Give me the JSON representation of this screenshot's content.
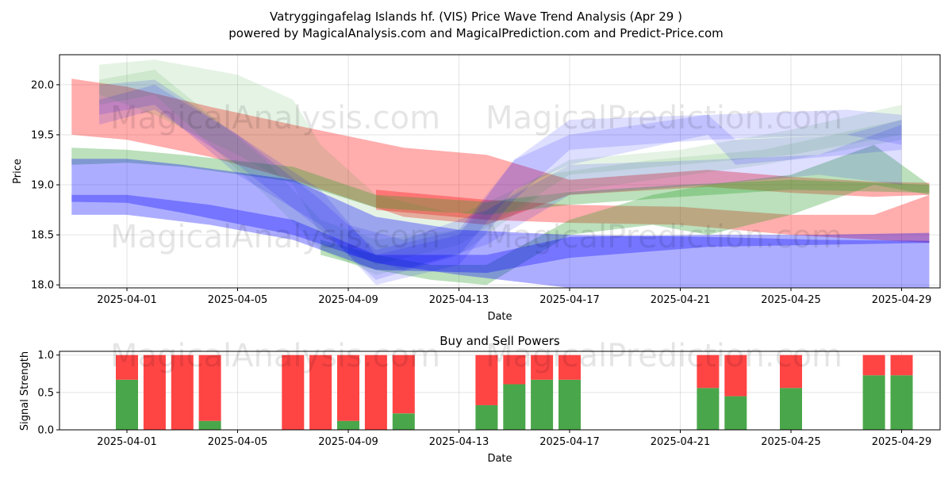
{
  "title_line1": "Vatryggingafelag Islands hf. (VIS) Price Wave Trend Analysis (Apr 29 )",
  "title_line2": "powered by MagicalAnalysis.com and MagicalPrediction.com and Predict-Price.com",
  "watermarks": [
    "MagicalAnalysis.com",
    "MagicalPrediction.com"
  ],
  "colors": {
    "green": "#2ca02c",
    "red": "#ff0000",
    "blue": "#0000ff",
    "buy": "#4aa64a",
    "sell": "#ff4444"
  },
  "chart_data": [
    {
      "type": "area",
      "xlabel": "Date",
      "ylabel": "Price",
      "ylim": [
        17.97,
        20.3
      ],
      "x_ticks": [
        "2025-04-01",
        "2025-04-05",
        "2025-04-09",
        "2025-04-13",
        "2025-04-17",
        "2025-04-21",
        "2025-04-25",
        "2025-04-29"
      ],
      "y_ticks": [
        "18.0",
        "18.5",
        "19.0",
        "19.5",
        "20.0"
      ],
      "grid": true,
      "bands": [
        {
          "color": "red",
          "opacity": 0.32,
          "x": [
            "2025-03-30",
            "2025-04-01",
            "2025-04-04",
            "2025-04-07",
            "2025-04-11",
            "2025-04-14",
            "2025-04-17",
            "2025-04-22",
            "2025-04-25",
            "2025-04-28",
            "2025-04-30"
          ],
          "low": [
            19.5,
            19.45,
            19.28,
            19.05,
            18.68,
            18.6,
            18.9,
            18.98,
            18.92,
            18.88,
            18.9
          ],
          "high": [
            20.06,
            19.98,
            19.78,
            19.6,
            19.37,
            19.3,
            19.05,
            19.15,
            19.08,
            19.03,
            19.02
          ]
        },
        {
          "color": "red",
          "opacity": 0.32,
          "x": [
            "2025-04-10",
            "2025-04-14",
            "2025-04-17",
            "2025-04-21",
            "2025-04-25",
            "2025-04-28",
            "2025-04-30"
          ],
          "low": [
            18.75,
            18.65,
            18.62,
            18.6,
            18.5,
            18.45,
            18.42
          ],
          "high": [
            18.95,
            18.85,
            18.8,
            18.78,
            18.7,
            18.7,
            18.9
          ]
        },
        {
          "color": "green",
          "opacity": 0.32,
          "x": [
            "2025-03-30",
            "2025-04-01",
            "2025-04-03",
            "2025-04-07",
            "2025-04-10",
            "2025-04-14",
            "2025-04-17",
            "2025-04-21",
            "2025-04-25",
            "2025-04-30"
          ],
          "low": [
            19.2,
            19.22,
            19.18,
            19.03,
            18.77,
            18.7,
            18.8,
            18.88,
            18.95,
            18.92
          ],
          "high": [
            19.37,
            19.35,
            19.3,
            19.18,
            18.9,
            18.83,
            18.93,
            19.0,
            19.05,
            19.0
          ]
        },
        {
          "color": "green",
          "opacity": 0.32,
          "x": [
            "2025-04-08",
            "2025-04-10",
            "2025-04-12",
            "2025-04-14",
            "2025-04-17",
            "2025-04-20",
            "2025-04-22",
            "2025-04-25",
            "2025-04-28",
            "2025-04-30"
          ],
          "low": [
            18.3,
            18.15,
            18.05,
            18.0,
            18.5,
            18.6,
            18.5,
            18.7,
            19.0,
            18.9
          ],
          "high": [
            18.45,
            18.3,
            18.2,
            18.2,
            18.65,
            18.9,
            19.0,
            19.1,
            19.4,
            19.0
          ]
        },
        {
          "color": "green",
          "opacity": 0.12,
          "x": [
            "2025-03-31",
            "2025-04-02",
            "2025-04-05",
            "2025-04-07",
            "2025-04-08",
            "2025-04-10",
            "2025-04-13",
            "2025-04-15",
            "2025-04-17",
            "2025-04-21",
            "2025-04-25",
            "2025-04-29"
          ],
          "low": [
            19.9,
            19.7,
            19.3,
            19.0,
            18.5,
            18.2,
            18.4,
            18.75,
            19.1,
            19.2,
            19.3,
            19.5
          ],
          "high": [
            20.2,
            20.25,
            20.1,
            19.85,
            19.4,
            18.9,
            18.7,
            18.95,
            19.25,
            19.35,
            19.55,
            19.8
          ]
        },
        {
          "color": "green",
          "opacity": 0.12,
          "x": [
            "2025-03-31",
            "2025-04-02",
            "2025-04-04",
            "2025-04-06",
            "2025-04-08",
            "2025-04-10",
            "2025-04-13",
            "2025-04-16",
            "2025-04-20",
            "2025-04-24",
            "2025-04-29"
          ],
          "low": [
            19.8,
            19.9,
            19.4,
            18.9,
            18.35,
            18.1,
            18.3,
            18.9,
            19.05,
            19.2,
            19.45
          ],
          "high": [
            20.05,
            20.15,
            19.7,
            19.25,
            18.65,
            18.45,
            18.55,
            19.1,
            19.25,
            19.35,
            19.65
          ]
        },
        {
          "color": "blue",
          "opacity": 0.32,
          "x": [
            "2025-03-30",
            "2025-04-01",
            "2025-04-03",
            "2025-04-07",
            "2025-04-10",
            "2025-04-13",
            "2025-04-17",
            "2025-04-22",
            "2025-04-26",
            "2025-04-30"
          ],
          "low": [
            18.83,
            18.82,
            18.72,
            18.5,
            18.22,
            18.1,
            17.97,
            17.97,
            17.97,
            17.97
          ],
          "high": [
            19.26,
            19.26,
            19.2,
            19.05,
            18.68,
            18.55,
            18.5,
            18.48,
            18.45,
            18.44
          ]
        },
        {
          "color": "blue",
          "opacity": 0.32,
          "x": [
            "2025-03-30",
            "2025-04-01",
            "2025-04-04",
            "2025-04-07",
            "2025-04-10",
            "2025-04-14",
            "2025-04-17",
            "2025-04-22",
            "2025-04-26",
            "2025-04-30"
          ],
          "low": [
            18.7,
            18.7,
            18.6,
            18.45,
            18.15,
            18.12,
            18.27,
            18.38,
            18.4,
            18.42
          ],
          "high": [
            18.9,
            18.9,
            18.8,
            18.65,
            18.3,
            18.3,
            18.48,
            18.5,
            18.5,
            18.52
          ]
        },
        {
          "color": "blue",
          "opacity": 0.13,
          "x": [
            "2025-03-31",
            "2025-04-02",
            "2025-04-05",
            "2025-04-08",
            "2025-04-10",
            "2025-04-13",
            "2025-04-15",
            "2025-04-17",
            "2025-04-22",
            "2025-04-27",
            "2025-04-29"
          ],
          "low": [
            19.7,
            19.8,
            19.1,
            18.6,
            18.0,
            18.2,
            18.85,
            19.35,
            19.45,
            19.5,
            19.4
          ],
          "high": [
            20.0,
            20.05,
            19.5,
            18.95,
            18.3,
            18.5,
            19.25,
            19.65,
            19.7,
            19.75,
            19.7
          ]
        },
        {
          "color": "blue",
          "opacity": 0.13,
          "x": [
            "2025-03-31",
            "2025-04-02",
            "2025-04-05",
            "2025-04-08",
            "2025-04-10",
            "2025-04-13",
            "2025-04-15",
            "2025-04-17",
            "2025-04-22",
            "2025-04-23",
            "2025-04-27",
            "2025-04-29"
          ],
          "low": [
            19.6,
            19.75,
            19.2,
            18.55,
            18.05,
            18.3,
            18.95,
            19.2,
            19.5,
            19.2,
            19.3,
            19.35
          ],
          "high": [
            19.85,
            20.0,
            19.5,
            18.85,
            18.35,
            18.55,
            19.25,
            19.5,
            19.7,
            19.45,
            19.5,
            19.65
          ]
        },
        {
          "color": "blue",
          "opacity": 0.13,
          "x": [
            "2025-04-09",
            "2025-04-11",
            "2025-04-14",
            "2025-04-17",
            "2025-04-22",
            "2025-04-26",
            "2025-04-29"
          ],
          "low": [
            18.3,
            18.15,
            18.4,
            18.9,
            19.0,
            19.1,
            19.0
          ],
          "high": [
            18.6,
            18.45,
            18.75,
            19.2,
            19.25,
            19.3,
            19.6
          ]
        }
      ]
    },
    {
      "type": "bar",
      "title": "Buy and Sell Powers",
      "xlabel": "Date",
      "ylabel": "Signal Strength",
      "ylim": [
        0,
        1.05
      ],
      "x_ticks": [
        "2025-04-01",
        "2025-04-05",
        "2025-04-09",
        "2025-04-13",
        "2025-04-17",
        "2025-04-21",
        "2025-04-25",
        "2025-04-29"
      ],
      "y_ticks": [
        "0.0",
        "0.5",
        "1.0"
      ],
      "grid": true,
      "x": [
        "2025-04-01",
        "2025-04-02",
        "2025-04-03",
        "2025-04-04",
        "2025-04-07",
        "2025-04-08",
        "2025-04-09",
        "2025-04-10",
        "2025-04-11",
        "2025-04-14",
        "2025-04-15",
        "2025-04-16",
        "2025-04-17",
        "2025-04-22",
        "2025-04-23",
        "2025-04-25",
        "2025-04-28",
        "2025-04-29"
      ],
      "series": [
        {
          "name": "buy",
          "values": [
            0.67,
            0,
            0,
            0.12,
            0,
            0,
            0.12,
            0,
            0.22,
            0.33,
            0.61,
            0.67,
            0.67,
            0.56,
            0.45,
            0.56,
            0.73,
            0.73
          ]
        },
        {
          "name": "sell",
          "values": [
            0.33,
            1,
            1,
            0.88,
            1,
            1,
            0.88,
            1,
            0.78,
            0.67,
            0.39,
            0.33,
            0.33,
            0.44,
            0.55,
            0.44,
            0.27,
            0.27
          ]
        }
      ]
    }
  ]
}
